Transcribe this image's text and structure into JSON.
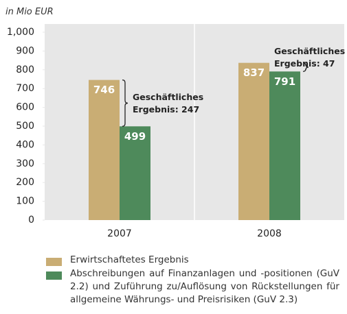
{
  "chart_data": {
    "type": "bar",
    "y_label": "in Mio EUR",
    "categories": [
      "2007",
      "2008"
    ],
    "series": [
      {
        "name": "Erwirtschaftetes Ergebnis",
        "color": "#c9ad74",
        "values": [
          746,
          837
        ]
      },
      {
        "name": "Abschreibungen auf Finanzanlagen und -positionen (GuV 2.2) und Zuführung zu/Auflösung von Rückstellungen für allgemeine Währungs- und Preisrisiken (GuV 2.3)",
        "color": "#4e8a5b",
        "values": [
          499,
          791
        ]
      }
    ],
    "ylim": [
      0,
      1000
    ],
    "yticks": [
      0,
      100,
      200,
      300,
      400,
      500,
      600,
      700,
      800,
      900,
      {
        "value": 1000,
        "label": "1,000"
      }
    ],
    "annotations": [
      "Geschäftliches Ergebnis: 247",
      "Geschäftliches Ergebnis: 47"
    ],
    "grid": false
  }
}
